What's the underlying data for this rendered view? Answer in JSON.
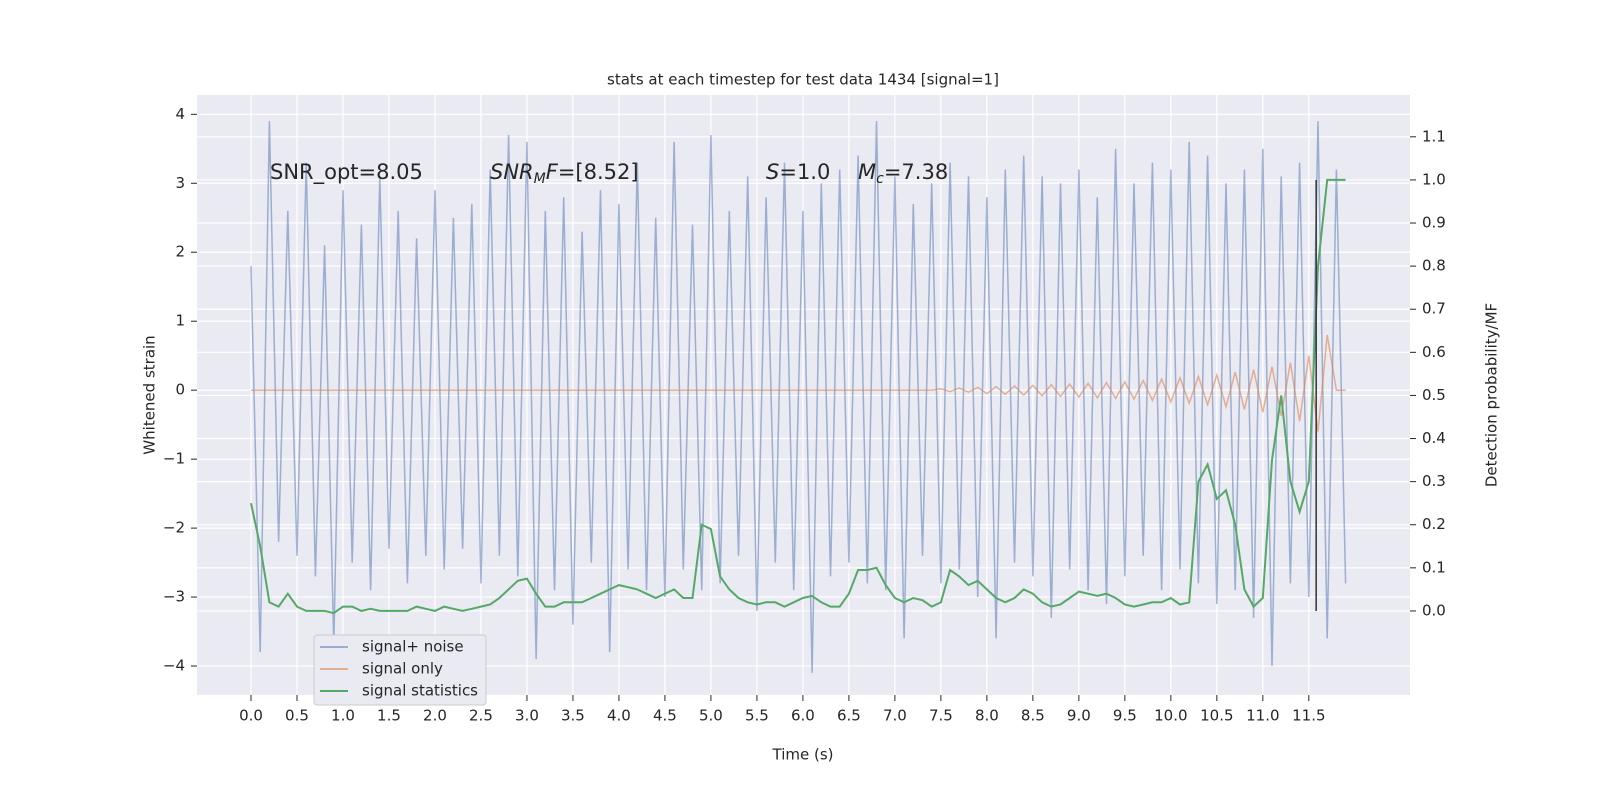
{
  "chart_data": {
    "type": "line",
    "title": "stats at each timestep for test data 1434 [signal=1]",
    "xlabel": "Time (s)",
    "ylabel": "Whitened strain",
    "y2label": "Detection probability/MF",
    "annotations": [
      [
        {
          "text": "SNR_opt=8.05"
        }
      ],
      [
        {
          "text": "SNR",
          "italic": true
        },
        {
          "text": "M",
          "italic": true,
          "sub": true
        },
        {
          "text": "F",
          "italic": true
        },
        {
          "text": "=[8.52]"
        }
      ],
      [
        {
          "text": "S",
          "italic": true
        },
        {
          "text": "=1.0"
        }
      ],
      [
        {
          "text": "M",
          "italic": true
        },
        {
          "text": "c",
          "italic": true,
          "sub": true
        },
        {
          "text": "=7.38"
        }
      ]
    ],
    "x": [
      0.0,
      0.1,
      0.2,
      0.3,
      0.4,
      0.5,
      0.6,
      0.7,
      0.8,
      0.9,
      1.0,
      1.1,
      1.2,
      1.3,
      1.4,
      1.5,
      1.6,
      1.7,
      1.8,
      1.9,
      2.0,
      2.1,
      2.2,
      2.3,
      2.4,
      2.5,
      2.6,
      2.7,
      2.8,
      2.9,
      3.0,
      3.1,
      3.2,
      3.3,
      3.4,
      3.5,
      3.6,
      3.7,
      3.8,
      3.9,
      4.0,
      4.1,
      4.2,
      4.3,
      4.4,
      4.5,
      4.6,
      4.7,
      4.8,
      4.9,
      5.0,
      5.1,
      5.2,
      5.3,
      5.4,
      5.5,
      5.6,
      5.7,
      5.8,
      5.9,
      6.0,
      6.1,
      6.2,
      6.3,
      6.4,
      6.5,
      6.6,
      6.7,
      6.8,
      6.9,
      7.0,
      7.1,
      7.2,
      7.3,
      7.4,
      7.5,
      7.6,
      7.7,
      7.8,
      7.9,
      8.0,
      8.1,
      8.2,
      8.3,
      8.4,
      8.5,
      8.6,
      8.7,
      8.8,
      8.9,
      9.0,
      9.1,
      9.2,
      9.3,
      9.4,
      9.5,
      9.6,
      9.7,
      9.8,
      9.9,
      10.0,
      10.1,
      10.2,
      10.3,
      10.4,
      10.5,
      10.6,
      10.7,
      10.8,
      10.9,
      11.0,
      11.1,
      11.2,
      11.3,
      11.4,
      11.5,
      11.6,
      11.7,
      11.8,
      11.9
    ],
    "series": [
      {
        "name": "signal+ noise",
        "color": "#4c72b0",
        "opacity": 0.5,
        "values": [
          1.8,
          -3.8,
          3.9,
          -2.2,
          2.6,
          -2.4,
          3.3,
          -2.7,
          2.1,
          -3.7,
          2.9,
          -2.5,
          2.4,
          -2.9,
          3.1,
          -2.3,
          2.6,
          -2.8,
          2.2,
          -2.4,
          2.9,
          -2.6,
          2.5,
          -2.3,
          2.7,
          -2.8,
          3.2,
          -2.4,
          3.7,
          -2.7,
          3.6,
          -3.9,
          2.6,
          -2.9,
          2.8,
          -3.4,
          2.3,
          -2.5,
          2.9,
          -3.8,
          2.7,
          -2.6,
          3.3,
          -2.9,
          2.5,
          -3.0,
          3.6,
          -2.6,
          2.4,
          -2.9,
          3.7,
          -2.8,
          2.6,
          -2.4,
          3.1,
          -3.2,
          2.8,
          -2.5,
          3.3,
          -2.9,
          2.6,
          -4.1,
          3.0,
          -2.7,
          3.2,
          -2.5,
          3.4,
          -2.8,
          3.9,
          -2.9,
          3.1,
          -3.6,
          2.7,
          -2.4,
          3.0,
          -2.8,
          3.3,
          -2.6,
          3.1,
          -3.0,
          2.8,
          -3.6,
          3.2,
          -2.5,
          3.4,
          -2.7,
          3.1,
          -3.3,
          3.0,
          -2.6,
          3.2,
          -2.9,
          2.8,
          -3.1,
          3.5,
          -2.7,
          3.0,
          -2.4,
          3.3,
          -2.9,
          3.2,
          -2.6,
          3.6,
          -2.8,
          3.4,
          -3.1,
          3.0,
          -2.9,
          3.2,
          -3.3,
          3.5,
          -4.0,
          3.1,
          -2.8,
          3.3,
          -3.0,
          3.9,
          -3.6,
          3.2,
          -2.8
        ]
      },
      {
        "name": "signal only",
        "color": "#dd8452",
        "opacity": 0.6,
        "values": [
          0,
          0,
          0,
          0,
          0,
          0,
          0,
          0,
          0,
          0,
          0,
          0,
          0,
          0,
          0,
          0,
          0,
          0,
          0,
          0,
          0,
          0,
          0,
          0,
          0,
          0,
          0,
          0,
          0,
          0,
          0,
          0,
          0,
          0,
          0,
          0,
          0,
          0,
          0,
          0,
          0,
          0,
          0,
          0,
          0,
          0,
          0,
          0,
          0,
          0,
          0,
          0,
          0,
          0,
          0,
          0,
          0,
          0,
          0,
          0,
          0,
          0,
          0,
          0,
          0,
          0,
          0,
          0,
          0,
          0,
          0,
          0,
          0,
          0,
          0,
          0.02,
          -0.02,
          0.03,
          -0.03,
          0.04,
          -0.05,
          0.05,
          -0.06,
          0.06,
          -0.07,
          0.07,
          -0.08,
          0.08,
          -0.09,
          0.09,
          -0.1,
          0.1,
          -0.11,
          0.11,
          -0.12,
          0.12,
          -0.13,
          0.14,
          -0.15,
          0.16,
          -0.17,
          0.18,
          -0.19,
          0.2,
          -0.21,
          0.22,
          -0.24,
          0.26,
          -0.28,
          0.3,
          -0.32,
          0.34,
          -0.37,
          0.4,
          -0.45,
          0.5,
          -0.6,
          0.8,
          0,
          0
        ]
      },
      {
        "name": "signal statistics",
        "color": "#55a868",
        "opacity": 1,
        "axis": "y2",
        "values": [
          0.25,
          0.15,
          0.02,
          0.01,
          0.04,
          0.01,
          0.0,
          0.0,
          0.0,
          -0.005,
          0.01,
          0.01,
          0.0,
          0.005,
          0.0,
          0.0,
          0.0,
          0.0,
          0.01,
          0.005,
          0.0,
          0.01,
          0.005,
          0.0,
          0.005,
          0.01,
          0.015,
          0.03,
          0.05,
          0.07,
          0.075,
          0.04,
          0.01,
          0.01,
          0.02,
          0.02,
          0.02,
          0.03,
          0.04,
          0.05,
          0.06,
          0.055,
          0.05,
          0.04,
          0.03,
          0.04,
          0.05,
          0.03,
          0.03,
          0.2,
          0.19,
          0.08,
          0.05,
          0.03,
          0.02,
          0.015,
          0.02,
          0.02,
          0.01,
          0.02,
          0.03,
          0.035,
          0.02,
          0.01,
          0.01,
          0.04,
          0.095,
          0.095,
          0.1,
          0.06,
          0.03,
          0.02,
          0.03,
          0.025,
          0.01,
          0.02,
          0.095,
          0.08,
          0.06,
          0.07,
          0.05,
          0.03,
          0.02,
          0.03,
          0.05,
          0.04,
          0.02,
          0.01,
          0.015,
          0.03,
          0.045,
          0.04,
          0.035,
          0.04,
          0.03,
          0.015,
          0.01,
          0.015,
          0.02,
          0.02,
          0.03,
          0.015,
          0.02,
          0.3,
          0.34,
          0.26,
          0.28,
          0.2,
          0.05,
          0.01,
          0.03,
          0.35,
          0.5,
          0.3,
          0.23,
          0.3,
          0.8,
          1.0,
          1.0,
          1.0
        ]
      }
    ],
    "marker_time": 11.58,
    "marker_color": "#333333",
    "xlim": [
      -0.587,
      12.6
    ],
    "ylim": [
      -4.42,
      4.28
    ],
    "y2lim": [
      -0.195,
      1.197
    ],
    "xticks": [
      {
        "value": 0,
        "label": "0.0"
      },
      {
        "value": 0.5,
        "label": "0.5"
      },
      {
        "value": 1,
        "label": "1.0"
      },
      {
        "value": 1.5,
        "label": "1.5"
      },
      {
        "value": 2,
        "label": "2.0"
      },
      {
        "value": 2.5,
        "label": "2.5"
      },
      {
        "value": 3,
        "label": "3.0"
      },
      {
        "value": 3.5,
        "label": "3.5"
      },
      {
        "value": 4,
        "label": "4.0"
      },
      {
        "value": 4.5,
        "label": "4.5"
      },
      {
        "value": 5,
        "label": "5.0"
      },
      {
        "value": 5.5,
        "label": "5.5"
      },
      {
        "value": 6,
        "label": "6.0"
      },
      {
        "value": 6.5,
        "label": "6.5"
      },
      {
        "value": 7,
        "label": "7.0"
      },
      {
        "value": 7.5,
        "label": "7.5"
      },
      {
        "value": 8,
        "label": "8.0"
      },
      {
        "value": 8.5,
        "label": "8.5"
      },
      {
        "value": 9,
        "label": "9.0"
      },
      {
        "value": 9.5,
        "label": "9.5"
      },
      {
        "value": 10,
        "label": "10.0"
      },
      {
        "value": 10.5,
        "label": "10.5"
      },
      {
        "value": 11,
        "label": "11.0"
      },
      {
        "value": 11.5,
        "label": "11.5"
      }
    ],
    "yticks": [
      {
        "value": -4,
        "label": "−4"
      },
      {
        "value": -3,
        "label": "−3"
      },
      {
        "value": -2,
        "label": "−2"
      },
      {
        "value": -1,
        "label": "−1"
      },
      0,
      1,
      2,
      3,
      4
    ],
    "y2ticks": [
      {
        "value": 0,
        "label": "0.0"
      },
      {
        "value": 0.1,
        "label": "0.1"
      },
      {
        "value": 0.2,
        "label": "0.2"
      },
      {
        "value": 0.3,
        "label": "0.3"
      },
      {
        "value": 0.4,
        "label": "0.4"
      },
      {
        "value": 0.5,
        "label": "0.5"
      },
      {
        "value": 0.6,
        "label": "0.6"
      },
      {
        "value": 0.7,
        "label": "0.7"
      },
      {
        "value": 0.8,
        "label": "0.8"
      },
      {
        "value": 0.9,
        "label": "0.9"
      },
      {
        "value": 1,
        "label": "1.0"
      },
      {
        "value": 1.1,
        "label": "1.1"
      }
    ],
    "grid": true,
    "legend": "lower left"
  }
}
